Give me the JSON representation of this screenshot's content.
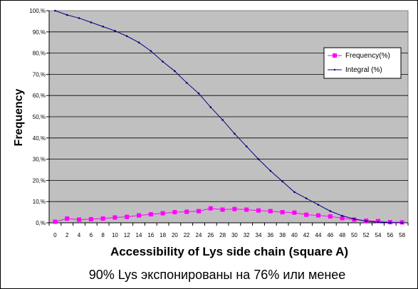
{
  "chart_data": {
    "type": "line",
    "xlabel": "Accessibility of Lys side chain (square A)",
    "ylabel": "Frequency",
    "caption": "90% Lys  экспонированы на 76%  или менее",
    "x": [
      0,
      2,
      4,
      6,
      8,
      10,
      12,
      14,
      16,
      18,
      20,
      22,
      24,
      26,
      28,
      30,
      32,
      34,
      36,
      38,
      40,
      42,
      44,
      46,
      48,
      50,
      52,
      54,
      56,
      58
    ],
    "ylim": [
      0,
      100
    ],
    "yticks": [
      "0,%",
      "10,%",
      "20,%",
      "30,%",
      "40,%",
      "50,%",
      "60,%",
      "70,%",
      "80,%",
      "90,%",
      "100,%"
    ],
    "grid": true,
    "legend_position": "right",
    "series": [
      {
        "name": "Frequency(%)",
        "color": "#ff00ff",
        "marker": "square",
        "values": [
          0.5,
          2,
          1.5,
          1.7,
          2,
          2.5,
          2.8,
          3.5,
          4,
          4.5,
          5,
          5.2,
          5.5,
          6.8,
          6.2,
          6.5,
          6.2,
          5.8,
          5.5,
          5,
          4.8,
          3.8,
          3.5,
          3,
          2.2,
          1.5,
          1,
          0.8,
          0.3,
          0.2
        ]
      },
      {
        "name": "Integral (%)",
        "color": "#000080",
        "marker": "dot",
        "values": [
          100,
          98,
          96.5,
          94.5,
          92.5,
          90.5,
          88,
          85,
          81,
          76,
          71.5,
          66,
          61,
          54.5,
          48.5,
          42,
          36,
          30,
          24.5,
          19.5,
          14.5,
          11.5,
          8.5,
          5.5,
          3.3,
          1.8,
          0.8,
          0.3,
          0.1,
          0
        ]
      }
    ]
  }
}
